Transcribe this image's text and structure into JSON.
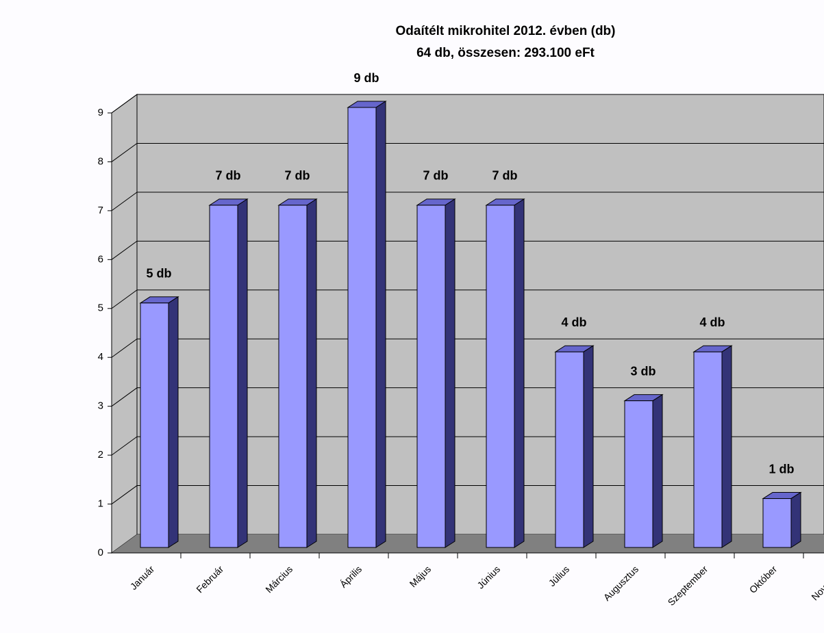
{
  "chart_data": {
    "type": "bar",
    "title": "Odaítélt mikrohitel 2012. évben (db)",
    "subtitle": "64 db, összesen: 293.100 eFt",
    "categories": [
      "Január",
      "Február",
      "Március",
      "Április",
      "Május",
      "Június",
      "Július",
      "Augusztus",
      "Szeptember",
      "Október",
      "November"
    ],
    "values": [
      5,
      7,
      7,
      9,
      7,
      7,
      4,
      3,
      4,
      1,
      null
    ],
    "value_labels": [
      "5 db",
      "7 db",
      "7 db",
      "9 db",
      "7 db",
      "7 db",
      "4 db",
      "3 db",
      "4 db",
      "1 db",
      null
    ],
    "color": "#9999ff",
    "ylim": [
      0,
      9
    ],
    "yticks": [
      0,
      1,
      2,
      3,
      4,
      5,
      6,
      7,
      8,
      9
    ],
    "grid": true
  }
}
